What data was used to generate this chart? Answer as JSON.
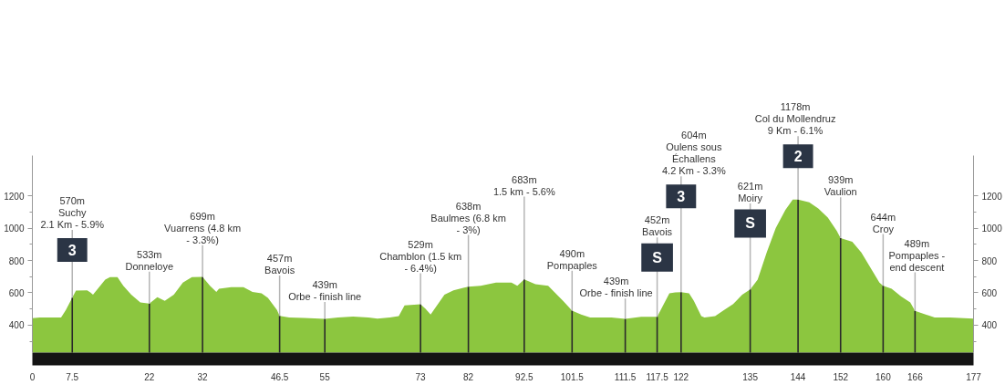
{
  "chart_data": {
    "type": "area",
    "x": [
      0,
      1.4,
      3.1,
      5.4,
      6.3,
      7.5,
      8.2,
      10.3,
      10.9,
      11.4,
      13.7,
      14.6,
      16,
      17.1,
      18.6,
      20.3,
      22,
      23.5,
      24.9,
      26.6,
      28.3,
      30,
      32,
      33.4,
      34.6,
      35.1,
      37.4,
      39.7,
      41.4,
      43.1,
      44.3,
      46,
      46.5,
      48.3,
      51.1,
      55,
      57.5,
      60.3,
      63.2,
      64.9,
      67.2,
      68.9,
      70,
      73,
      73.9,
      74.9,
      77.5,
      79.2,
      82,
      84.3,
      87.2,
      90.1,
      91.2,
      92.5,
      94.6,
      97,
      99.8,
      101.5,
      103.2,
      104.9,
      108.9,
      111.5,
      114.5,
      117.5,
      119.8,
      120.9,
      122,
      123.5,
      124.4,
      125.8,
      126.4,
      128.4,
      130.1,
      131.8,
      133.5,
      135,
      136.4,
      138.1,
      139.8,
      141.6,
      143,
      144,
      146.1,
      147.8,
      149.6,
      151.3,
      152,
      154.2,
      155.9,
      157.6,
      159.3,
      160,
      161.6,
      163.4,
      165.1,
      166,
      168,
      169.7,
      172.6,
      177
    ],
    "series": [
      {
        "color": "#8cc63f",
        "values": [
          443,
          447,
          447,
          447,
          494,
          570,
          614,
          616,
          603,
          588,
          682,
          697,
          697,
          644,
          588,
          541,
          533,
          573,
          550,
          588,
          663,
          697,
          699,
          644,
          606,
          625,
          635,
          635,
          606,
          597,
          569,
          494,
          457,
          447,
          445,
          439,
          447,
          453,
          447,
          441,
          447,
          456,
          522,
          529,
          503,
          466,
          588,
          616,
          638,
          644,
          663,
          663,
          644,
          683,
          653,
          644,
          550,
          490,
          466,
          447,
          447,
          439,
          451,
          452,
          597,
          603,
          604,
          597,
          550,
          456,
          447,
          456,
          494,
          531,
          588,
          621,
          682,
          850,
          1001,
          1113,
          1178,
          1178,
          1160,
          1123,
          1066,
          982,
          939,
          916,
          850,
          757,
          663,
          644,
          625,
          578,
          541,
          489,
          466,
          447,
          447,
          441
        ]
      },
      {
        "type": "bar",
        "color": "#2a2a2a",
        "x": [
          7.5,
          22,
          32,
          46.5,
          55,
          73,
          82,
          92.5,
          101.5,
          111.5,
          117.5,
          122,
          135,
          144,
          152,
          160,
          166
        ],
        "values": [
          570,
          533,
          699,
          457,
          439,
          529,
          638,
          683,
          490,
          439,
          452,
          604,
          621,
          1178,
          939,
          644,
          489
        ]
      }
    ],
    "xlim": [
      0,
      177
    ],
    "xticks": [
      0,
      7.5,
      22,
      32,
      46.5,
      55,
      73,
      82,
      92.5,
      101.5,
      111.5,
      117.5,
      122,
      135,
      144,
      152,
      160,
      166,
      177
    ],
    "ylim": [
      230,
      1450
    ],
    "yticks": [
      {
        "value": 300,
        "label": null
      },
      400,
      {
        "value": 500,
        "label": null
      },
      600,
      {
        "value": 700,
        "label": null
      },
      800,
      {
        "value": 900,
        "label": null
      },
      1000,
      {
        "value": 1100,
        "label": null
      },
      1200
    ],
    "y2lim": [
      230,
      1450
    ],
    "y2ticks": [
      {
        "value": 300,
        "label": null
      },
      400,
      {
        "value": 500,
        "label": null
      },
      600,
      {
        "value": 700,
        "label": null
      },
      800,
      {
        "value": 900,
        "label": null
      },
      1000,
      {
        "value": 1100,
        "label": null
      },
      1200
    ],
    "grid": false,
    "annotations": [
      {
        "text": "570m\nSuchy\n2.1 Km - 5.9%",
        "x": 7.5,
        "y": 570
      },
      {
        "text": "3",
        "x": 7.5,
        "y": 570
      },
      {
        "text": "533m\nDonneloye",
        "x": 22,
        "y": 533
      },
      {
        "text": "699m\nVuarrens (4.8 km\n- 3.3%)",
        "x": 32,
        "y": 699
      },
      {
        "text": "457m\nBavois",
        "x": 46.5,
        "y": 457
      },
      {
        "text": "439m\nOrbe - finish line",
        "x": 55,
        "y": 439
      },
      {
        "text": "529m\nChamblon (1.5 km\n- 6.4%)",
        "x": 73,
        "y": 529
      },
      {
        "text": "638m\nBaulmes (6.8 km\n- 3%)",
        "x": 82,
        "y": 638
      },
      {
        "text": "683m\n1.5 km - 5.6%",
        "x": 92.5,
        "y": 683
      },
      {
        "text": "490m\nPompaples",
        "x": 101.5,
        "y": 490
      },
      {
        "text": "439m\nOrbe - finish line",
        "x": 111.5,
        "y": 439
      },
      {
        "text": "452m\nBavois",
        "x": 117.5,
        "y": 452
      },
      {
        "text": "S",
        "x": 117.5,
        "y": 452
      },
      {
        "text": "604m\nOulens sous\nÉchallens\n4.2 Km - 3.3%",
        "x": 122,
        "y": 604
      },
      {
        "text": "3",
        "x": 122,
        "y": 604
      },
      {
        "text": "621m\nMoiry",
        "x": 135,
        "y": 621
      },
      {
        "text": "S",
        "x": 135,
        "y": 621
      },
      {
        "text": "1178m\nCol du Mollendruz\n9 Km - 6.1%",
        "x": 144,
        "y": 1178
      },
      {
        "text": "2",
        "x": 144,
        "y": 1178
      },
      {
        "text": "939m\nVaulion",
        "x": 152,
        "y": 939
      },
      {
        "text": "644m\nCroy",
        "x": 160,
        "y": 644
      },
      {
        "text": "489m\nPompaples -\nend descent",
        "x": 166,
        "y": 489
      }
    ]
  }
}
